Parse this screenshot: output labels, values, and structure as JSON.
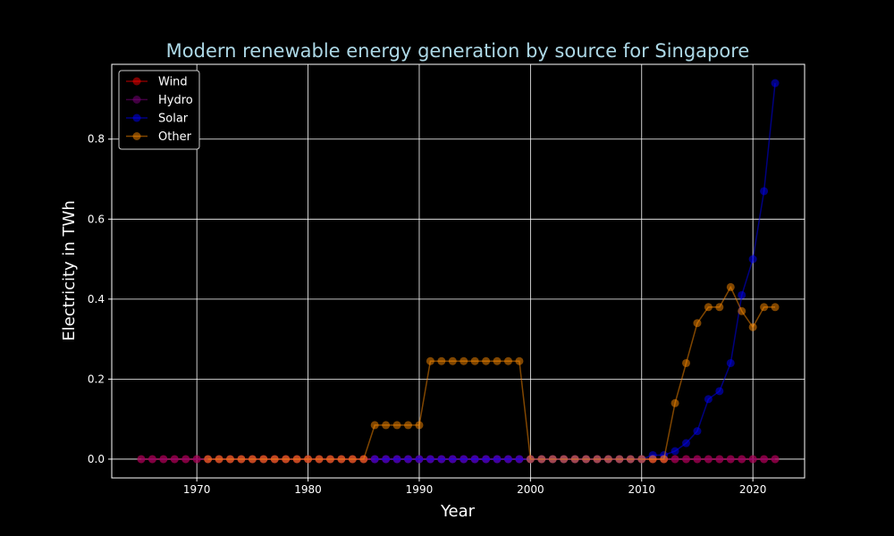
{
  "chart_data": {
    "type": "line",
    "title": "Modern renewable energy generation by source for Singapore",
    "xlabel": "Year",
    "ylabel": "Electricity in TWh",
    "xlim": [
      1962.35,
      2024.65
    ],
    "ylim": [
      -0.047,
      0.987
    ],
    "xticks": [
      1970,
      1980,
      1990,
      2000,
      2010,
      2020
    ],
    "yticks": [
      0.0,
      0.2,
      0.4,
      0.6,
      0.8
    ],
    "ytick_labels": [
      "0.0",
      "0.2",
      "0.4",
      "0.6",
      "0.8"
    ],
    "grid": true,
    "legend_position": "top-left",
    "series": [
      {
        "name": "Wind",
        "color": "#ff0000",
        "x": [
          1965,
          1966,
          1967,
          1968,
          1969,
          1970,
          1971,
          1972,
          1973,
          1974,
          1975,
          1976,
          1977,
          1978,
          1979,
          1980,
          1981,
          1982,
          1983,
          1984,
          1985,
          1986,
          1987,
          1988,
          1989,
          1990,
          1991,
          1992,
          1993,
          1994,
          1995,
          1996,
          1997,
          1998,
          1999,
          2000,
          2001,
          2002,
          2003,
          2004,
          2005,
          2006,
          2007,
          2008,
          2009,
          2010,
          2011,
          2012,
          2013,
          2014,
          2015,
          2016,
          2017,
          2018,
          2019,
          2020,
          2021,
          2022
        ],
        "y": [
          0,
          0,
          0,
          0,
          0,
          0,
          0,
          0,
          0,
          0,
          0,
          0,
          0,
          0,
          0,
          0,
          0,
          0,
          0,
          0,
          0,
          0,
          0,
          0,
          0,
          0,
          0,
          0,
          0,
          0,
          0,
          0,
          0,
          0,
          0,
          0,
          0,
          0,
          0,
          0,
          0,
          0,
          0,
          0,
          0,
          0,
          0,
          0,
          0,
          0,
          0,
          0,
          0,
          0,
          0,
          0,
          0,
          0
        ]
      },
      {
        "name": "Hydro",
        "color": "#800080",
        "x": [
          1965,
          1966,
          1967,
          1968,
          1969,
          1970,
          1971,
          1972,
          1973,
          1974,
          1975,
          1976,
          1977,
          1978,
          1979,
          1980,
          1981,
          1982,
          1983,
          1984,
          1985,
          1986,
          1987,
          1988,
          1989,
          1990,
          1991,
          1992,
          1993,
          1994,
          1995,
          1996,
          1997,
          1998,
          1999,
          2000,
          2001,
          2002,
          2003,
          2004,
          2005,
          2006,
          2007,
          2008,
          2009,
          2010,
          2011,
          2012,
          2013,
          2014,
          2015,
          2016,
          2017,
          2018,
          2019,
          2020,
          2021,
          2022
        ],
        "y": [
          0,
          0,
          0,
          0,
          0,
          0,
          0,
          0,
          0,
          0,
          0,
          0,
          0,
          0,
          0,
          0,
          0,
          0,
          0,
          0,
          0,
          0,
          0,
          0,
          0,
          0,
          0,
          0,
          0,
          0,
          0,
          0,
          0,
          0,
          0,
          0,
          0,
          0,
          0,
          0,
          0,
          0,
          0,
          0,
          0,
          0,
          0,
          0,
          0,
          0,
          0,
          0,
          0,
          0,
          0,
          0,
          0,
          0
        ]
      },
      {
        "name": "Solar",
        "color": "#0000ff",
        "x": [
          1986,
          1987,
          1988,
          1989,
          1990,
          1991,
          1992,
          1993,
          1994,
          1995,
          1996,
          1997,
          1998,
          1999,
          2000,
          2001,
          2002,
          2003,
          2004,
          2005,
          2006,
          2007,
          2008,
          2009,
          2010,
          2011,
          2012,
          2013,
          2014,
          2015,
          2016,
          2017,
          2018,
          2019,
          2020,
          2021,
          2022
        ],
        "y": [
          0,
          0,
          0,
          0,
          0,
          0,
          0,
          0,
          0,
          0,
          0,
          0,
          0,
          0,
          0,
          0,
          0,
          0,
          0,
          0,
          0,
          0,
          0,
          0,
          0,
          0.01,
          0.01,
          0.02,
          0.04,
          0.07,
          0.15,
          0.17,
          0.24,
          0.41,
          0.5,
          0.67,
          0.94
        ]
      },
      {
        "name": "Other",
        "color": "#ff8c00",
        "x": [
          1971,
          1972,
          1973,
          1974,
          1975,
          1976,
          1977,
          1978,
          1979,
          1980,
          1981,
          1982,
          1983,
          1984,
          1985,
          1986,
          1987,
          1988,
          1989,
          1990,
          1991,
          1992,
          1993,
          1994,
          1995,
          1996,
          1997,
          1998,
          1999,
          2000,
          2001,
          2002,
          2003,
          2004,
          2005,
          2006,
          2007,
          2008,
          2009,
          2010,
          2011,
          2012,
          2013,
          2014,
          2015,
          2016,
          2017,
          2018,
          2019,
          2020,
          2021,
          2022
        ],
        "y": [
          0,
          0,
          0,
          0,
          0,
          0,
          0,
          0,
          0,
          0,
          0,
          0,
          0,
          0,
          0,
          0.085,
          0.085,
          0.085,
          0.085,
          0.085,
          0.245,
          0.245,
          0.245,
          0.245,
          0.245,
          0.245,
          0.245,
          0.245,
          0.245,
          0,
          0,
          0,
          0,
          0,
          0,
          0,
          0,
          0,
          0,
          0,
          0,
          0,
          0.14,
          0.24,
          0.34,
          0.38,
          0.38,
          0.43,
          0.37,
          0.33,
          0.38,
          0.38
        ]
      }
    ]
  }
}
